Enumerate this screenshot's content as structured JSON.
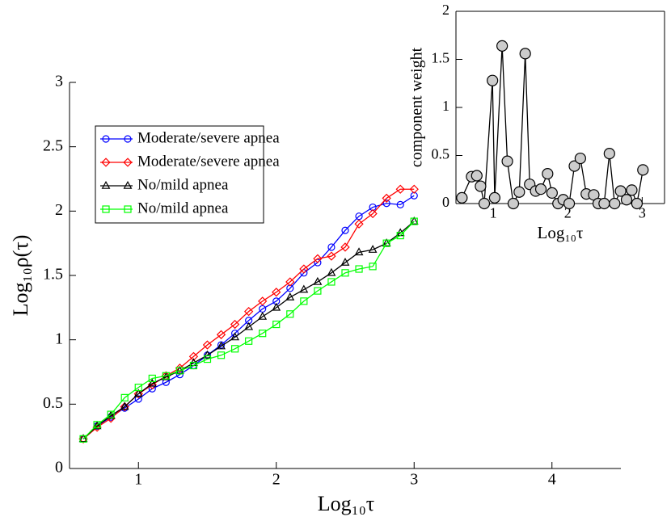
{
  "chart_data": [
    {
      "type": "line",
      "x_label": "Log₁₀τ",
      "y_label": "Log₁₀ρ(τ)",
      "x": [
        0.6,
        0.7,
        0.8,
        0.9,
        1.0,
        1.1,
        1.2,
        1.3,
        1.4,
        1.5,
        1.6,
        1.7,
        1.8,
        1.9,
        2.0,
        2.1,
        2.2,
        2.3,
        2.4,
        2.5,
        2.6,
        2.7,
        2.8,
        2.9,
        3.0
      ],
      "series": [
        {
          "name": "Moderate/severe apnea",
          "color": "#0000ff",
          "marker": "circle",
          "values": [
            0.23,
            0.33,
            0.4,
            0.47,
            0.54,
            0.62,
            0.67,
            0.73,
            0.8,
            0.88,
            0.96,
            1.05,
            1.15,
            1.24,
            1.3,
            1.4,
            1.52,
            1.6,
            1.72,
            1.85,
            1.96,
            2.03,
            2.06,
            2.05,
            2.12
          ]
        },
        {
          "name": "Moderate/severe apnea",
          "color": "#ff0000",
          "marker": "diamond",
          "values": [
            0.23,
            0.32,
            0.39,
            0.48,
            0.58,
            0.65,
            0.72,
            0.78,
            0.87,
            0.96,
            1.04,
            1.12,
            1.22,
            1.3,
            1.37,
            1.45,
            1.55,
            1.63,
            1.65,
            1.72,
            1.9,
            1.98,
            2.1,
            2.17,
            2.17
          ]
        },
        {
          "name": "No/mild apnea",
          "color": "#000000",
          "marker": "triangle",
          "values": [
            0.23,
            0.33,
            0.41,
            0.48,
            0.58,
            0.66,
            0.71,
            0.76,
            0.82,
            0.88,
            0.95,
            1.02,
            1.1,
            1.18,
            1.25,
            1.33,
            1.39,
            1.45,
            1.52,
            1.6,
            1.68,
            1.7,
            1.75,
            1.83,
            1.92
          ]
        },
        {
          "name": "No/mild apnea",
          "color": "#00ff00",
          "marker": "square",
          "values": [
            0.23,
            0.34,
            0.42,
            0.55,
            0.63,
            0.7,
            0.72,
            0.76,
            0.8,
            0.85,
            0.88,
            0.93,
            0.99,
            1.05,
            1.12,
            1.2,
            1.3,
            1.38,
            1.45,
            1.52,
            1.55,
            1.57,
            1.75,
            1.81,
            1.92
          ]
        }
      ],
      "xlim": [
        0.5,
        4.5
      ],
      "xticks": [
        1,
        2,
        3,
        4
      ],
      "ylim": [
        0,
        3
      ],
      "yticks": [
        0,
        0.5,
        1,
        1.5,
        2,
        2.5,
        3
      ],
      "legend": "upper left"
    },
    {
      "type": "line",
      "x_label": "Log₁₀τ",
      "y_label": "component weight",
      "x": [
        0.58,
        0.71,
        0.78,
        0.83,
        0.88,
        0.99,
        1.02,
        1.12,
        1.19,
        1.27,
        1.35,
        1.43,
        1.49,
        1.57,
        1.64,
        1.73,
        1.79,
        1.87,
        1.94,
        2.02,
        2.09,
        2.17,
        2.25,
        2.35,
        2.41,
        2.49,
        2.56,
        2.63,
        2.71,
        2.79,
        2.86,
        2.93,
        3.01
      ],
      "series": [
        {
          "color": "#000000",
          "marker": "circle",
          "marker_fill": "#cccccc",
          "values": [
            0.06,
            0.28,
            0.29,
            0.18,
            0,
            1.28,
            0.06,
            1.64,
            0.44,
            0,
            0.12,
            1.56,
            0.2,
            0.13,
            0.15,
            0.31,
            0.11,
            0,
            0.04,
            0,
            0.39,
            0.47,
            0.1,
            0.09,
            0,
            0,
            0.52,
            0,
            0.13,
            0.04,
            0.14,
            0,
            0.35
          ]
        }
      ],
      "xlim": [
        0.5,
        3.3
      ],
      "xticks": [
        1,
        2,
        3
      ],
      "ylim": [
        0,
        2
      ],
      "yticks": [
        0,
        0.5,
        1,
        1.5,
        2
      ]
    }
  ]
}
